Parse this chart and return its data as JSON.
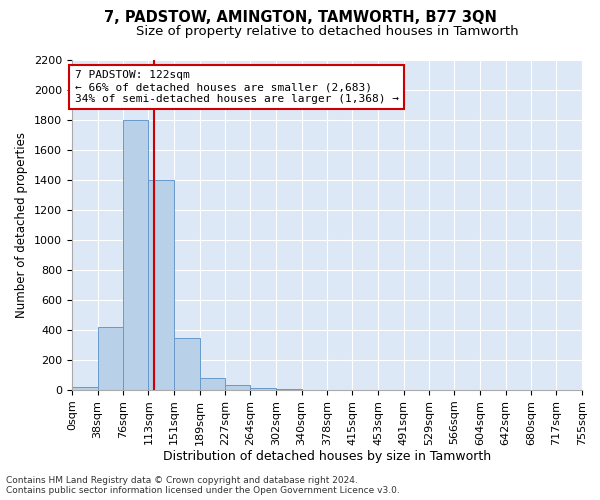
{
  "title": "7, PADSTOW, AMINGTON, TAMWORTH, B77 3QN",
  "subtitle": "Size of property relative to detached houses in Tamworth",
  "xlabel": "Distribution of detached houses by size in Tamworth",
  "ylabel": "Number of detached properties",
  "footer_line1": "Contains HM Land Registry data © Crown copyright and database right 2024.",
  "footer_line2": "Contains public sector information licensed under the Open Government Licence v3.0.",
  "annotation_title": "7 PADSTOW: 122sqm",
  "annotation_line1": "← 66% of detached houses are smaller (2,683)",
  "annotation_line2": "34% of semi-detached houses are larger (1,368) →",
  "property_size": 122,
  "bar_edges": [
    0,
    38,
    76,
    113,
    151,
    189,
    227,
    264,
    302,
    340,
    378,
    415,
    453,
    491,
    529,
    566,
    604,
    642,
    680,
    717,
    755
  ],
  "bar_values": [
    20,
    420,
    1800,
    1400,
    350,
    80,
    35,
    15,
    5,
    0,
    0,
    0,
    0,
    0,
    0,
    0,
    0,
    0,
    0,
    0
  ],
  "bar_color": "#b8d0e8",
  "bar_edge_color": "#6699cc",
  "vline_color": "#cc0000",
  "vline_x": 122,
  "annotation_box_color": "#cc0000",
  "background_color": "#dce8f5",
  "fig_background_color": "#ffffff",
  "ylim": [
    0,
    2200
  ],
  "yticks": [
    0,
    200,
    400,
    600,
    800,
    1000,
    1200,
    1400,
    1600,
    1800,
    2000,
    2200
  ],
  "title_fontsize": 10.5,
  "subtitle_fontsize": 9.5,
  "xlabel_fontsize": 9,
  "ylabel_fontsize": 8.5,
  "tick_fontsize": 8,
  "annotation_fontsize": 8,
  "footer_fontsize": 6.5
}
